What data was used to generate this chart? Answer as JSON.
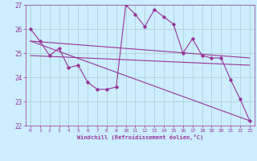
{
  "xlabel": "Windchill (Refroidissement éolien,°C)",
  "bg_color": "#cceeff",
  "grid_color": "#aacccc",
  "line_color": "#993399",
  "ylim": [
    22,
    27
  ],
  "xlim": [
    -0.5,
    23.5
  ],
  "yticks": [
    22,
    23,
    24,
    25,
    26,
    27
  ],
  "xticks": [
    0,
    1,
    2,
    3,
    4,
    5,
    6,
    7,
    8,
    9,
    10,
    11,
    12,
    13,
    14,
    15,
    16,
    17,
    18,
    19,
    20,
    21,
    22,
    23
  ],
  "series1": {
    "x": [
      0,
      1,
      2,
      3,
      4,
      5,
      6,
      7,
      8,
      9,
      10,
      11,
      12,
      13,
      14,
      15,
      16,
      17,
      18,
      19,
      20,
      21,
      22,
      23
    ],
    "y": [
      26.0,
      25.5,
      24.9,
      25.2,
      24.4,
      24.5,
      23.8,
      23.5,
      23.5,
      23.6,
      27.0,
      26.6,
      26.1,
      26.8,
      26.5,
      26.2,
      25.0,
      25.6,
      24.9,
      24.8,
      24.8,
      23.9,
      23.1,
      22.2
    ]
  },
  "series2": {
    "x": [
      0,
      23
    ],
    "y": [
      25.5,
      24.8
    ]
  },
  "series3": {
    "x": [
      0,
      23
    ],
    "y": [
      25.5,
      22.2
    ]
  },
  "series4": {
    "x": [
      0,
      23
    ],
    "y": [
      24.9,
      24.5
    ]
  }
}
